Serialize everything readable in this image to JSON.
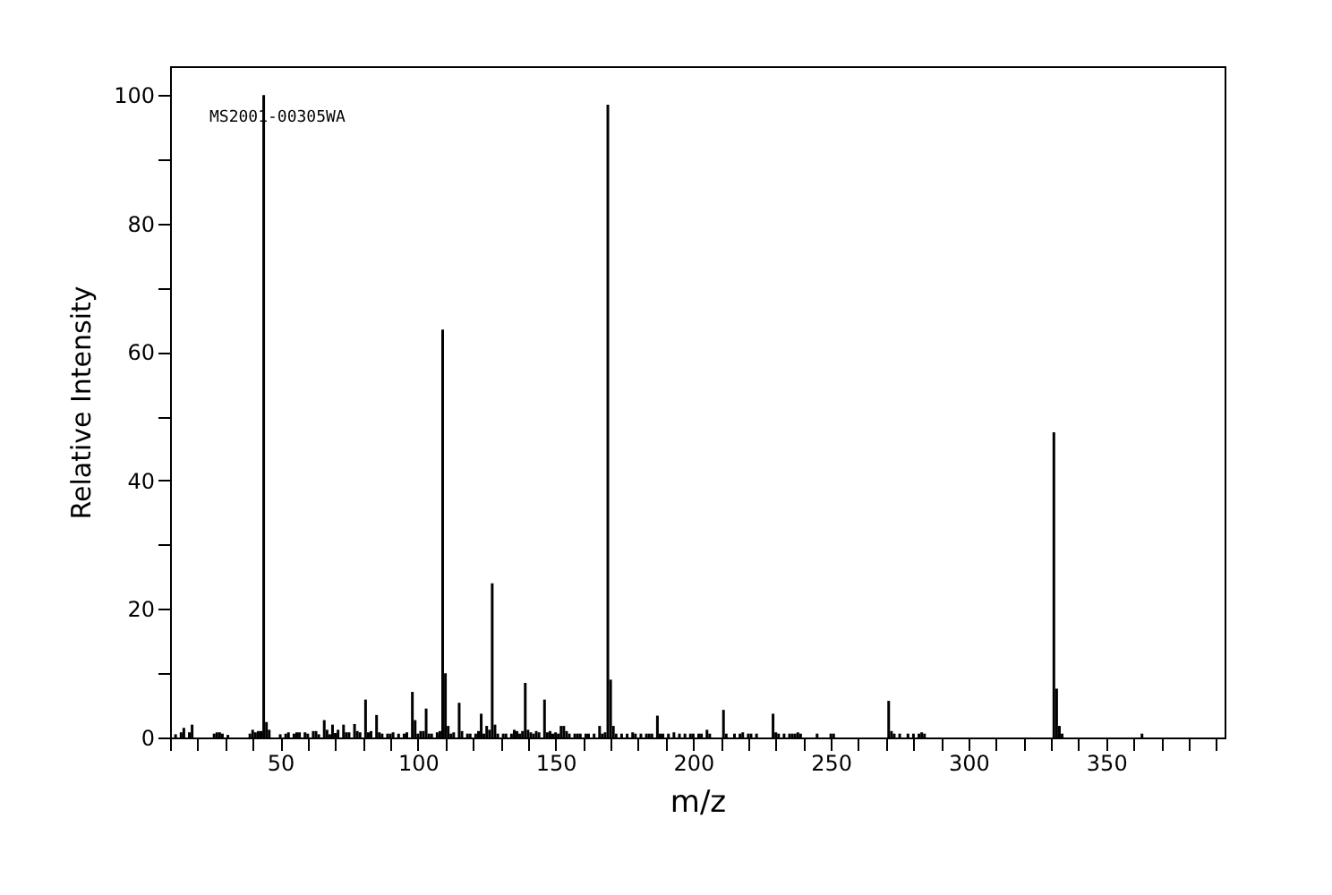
{
  "chart_data": {
    "type": "bar",
    "xlabel": "m/z",
    "ylabel": "Relative Intensity",
    "annotations": [
      "MS2001-00305WA"
    ],
    "color": "#000000",
    "x": [
      12,
      14,
      15,
      17,
      18,
      26,
      27,
      28,
      29,
      31,
      39,
      40,
      41,
      42,
      43,
      44,
      45,
      46,
      50,
      52,
      53,
      55,
      56,
      57,
      59,
      60,
      62,
      63,
      64,
      66,
      67,
      68,
      69,
      70,
      71,
      73,
      74,
      75,
      77,
      78,
      79,
      81,
      82,
      83,
      85,
      86,
      87,
      89,
      90,
      91,
      93,
      95,
      96,
      98,
      99,
      100,
      101,
      102,
      103,
      104,
      105,
      107,
      108,
      109,
      110,
      111,
      112,
      113,
      115,
      116,
      118,
      119,
      121,
      122,
      123,
      124,
      125,
      126,
      127,
      128,
      129,
      131,
      132,
      134,
      135,
      136,
      137,
      138,
      139,
      140,
      141,
      142,
      143,
      144,
      146,
      147,
      148,
      149,
      150,
      151,
      152,
      153,
      154,
      155,
      157,
      158,
      159,
      161,
      162,
      164,
      166,
      167,
      168,
      169,
      170,
      171,
      172,
      174,
      176,
      178,
      179,
      181,
      183,
      184,
      185,
      187,
      188,
      189,
      191,
      193,
      195,
      197,
      199,
      200,
      202,
      203,
      205,
      206,
      211,
      212,
      215,
      217,
      218,
      220,
      221,
      223,
      229,
      230,
      231,
      233,
      235,
      236,
      237,
      238,
      239,
      245,
      250,
      251,
      271,
      272,
      273,
      275,
      278,
      280,
      282,
      283,
      284,
      331,
      332,
      333,
      334,
      363
    ],
    "values": [
      0.5,
      0.8,
      1.5,
      0.8,
      2.0,
      0.6,
      0.8,
      0.8,
      0.6,
      0.4,
      0.6,
      1.2,
      0.8,
      1.0,
      1.0,
      100,
      2.4,
      1.2,
      0.5,
      0.6,
      0.8,
      0.6,
      0.8,
      0.8,
      0.8,
      0.6,
      1.0,
      1.0,
      0.5,
      2.7,
      1.2,
      0.5,
      2.0,
      0.7,
      1.2,
      2.0,
      0.8,
      0.8,
      2.1,
      1.0,
      0.8,
      5.9,
      0.8,
      1.0,
      3.5,
      0.8,
      0.6,
      0.6,
      0.6,
      0.8,
      0.6,
      0.6,
      0.8,
      7.1,
      2.7,
      0.6,
      1.0,
      1.0,
      4.5,
      0.6,
      0.6,
      0.8,
      1.0,
      63.5,
      10.0,
      1.8,
      0.6,
      0.8,
      5.4,
      1.0,
      0.6,
      0.6,
      0.6,
      1.0,
      3.7,
      0.6,
      1.8,
      1.2,
      24,
      2.0,
      0.6,
      0.6,
      0.6,
      0.6,
      1.2,
      1.0,
      0.6,
      1.0,
      8.5,
      1.2,
      0.8,
      0.6,
      1.0,
      0.8,
      5.9,
      0.8,
      1.0,
      0.6,
      0.8,
      0.6,
      1.8,
      1.8,
      1.0,
      0.6,
      0.6,
      0.6,
      0.6,
      0.6,
      0.6,
      0.6,
      1.8,
      0.6,
      0.8,
      98.5,
      9.0,
      1.8,
      0.6,
      0.6,
      0.6,
      0.8,
      0.6,
      0.6,
      0.6,
      0.6,
      0.6,
      3.4,
      0.6,
      0.6,
      0.6,
      0.8,
      0.6,
      0.6,
      0.6,
      0.6,
      0.6,
      0.6,
      1.2,
      0.6,
      4.3,
      0.6,
      0.6,
      0.6,
      0.8,
      0.6,
      0.6,
      0.6,
      3.7,
      0.8,
      0.6,
      0.6,
      0.6,
      0.6,
      0.6,
      0.8,
      0.6,
      0.6,
      0.6,
      0.6,
      5.7,
      1.0,
      0.6,
      0.6,
      0.6,
      0.6,
      0.6,
      0.8,
      0.6,
      47.5,
      7.6,
      1.8,
      0.6,
      0.6
    ],
    "xlim": [
      10,
      393
    ],
    "xticks": [
      {
        "value": 10,
        "label": null
      },
      {
        "value": 20,
        "label": null
      },
      {
        "value": 30,
        "label": null
      },
      {
        "value": 40,
        "label": null
      },
      50,
      {
        "value": 60,
        "label": null
      },
      {
        "value": 70,
        "label": null
      },
      {
        "value": 80,
        "label": null
      },
      {
        "value": 90,
        "label": null
      },
      100,
      {
        "value": 110,
        "label": null
      },
      {
        "value": 120,
        "label": null
      },
      {
        "value": 130,
        "label": null
      },
      {
        "value": 140,
        "label": null
      },
      150,
      {
        "value": 160,
        "label": null
      },
      {
        "value": 170,
        "label": null
      },
      {
        "value": 180,
        "label": null
      },
      {
        "value": 190,
        "label": null
      },
      200,
      {
        "value": 210,
        "label": null
      },
      {
        "value": 220,
        "label": null
      },
      {
        "value": 230,
        "label": null
      },
      {
        "value": 240,
        "label": null
      },
      250,
      {
        "value": 260,
        "label": null
      },
      {
        "value": 270,
        "label": null
      },
      {
        "value": 280,
        "label": null
      },
      {
        "value": 290,
        "label": null
      },
      300,
      {
        "value": 310,
        "label": null
      },
      {
        "value": 320,
        "label": null
      },
      {
        "value": 330,
        "label": null
      },
      {
        "value": 340,
        "label": null
      },
      350,
      {
        "value": 360,
        "label": null
      },
      {
        "value": 370,
        "label": null
      },
      {
        "value": 380,
        "label": null
      },
      {
        "value": 390,
        "label": null
      }
    ],
    "ylim": [
      0,
      104.5
    ],
    "yticks": [
      0,
      {
        "value": 10,
        "label": null
      },
      20,
      {
        "value": 30,
        "label": null
      },
      40,
      {
        "value": 50,
        "label": null
      },
      60,
      {
        "value": 70,
        "label": null
      },
      80,
      {
        "value": 90,
        "label": null
      },
      100
    ],
    "grid": false
  }
}
